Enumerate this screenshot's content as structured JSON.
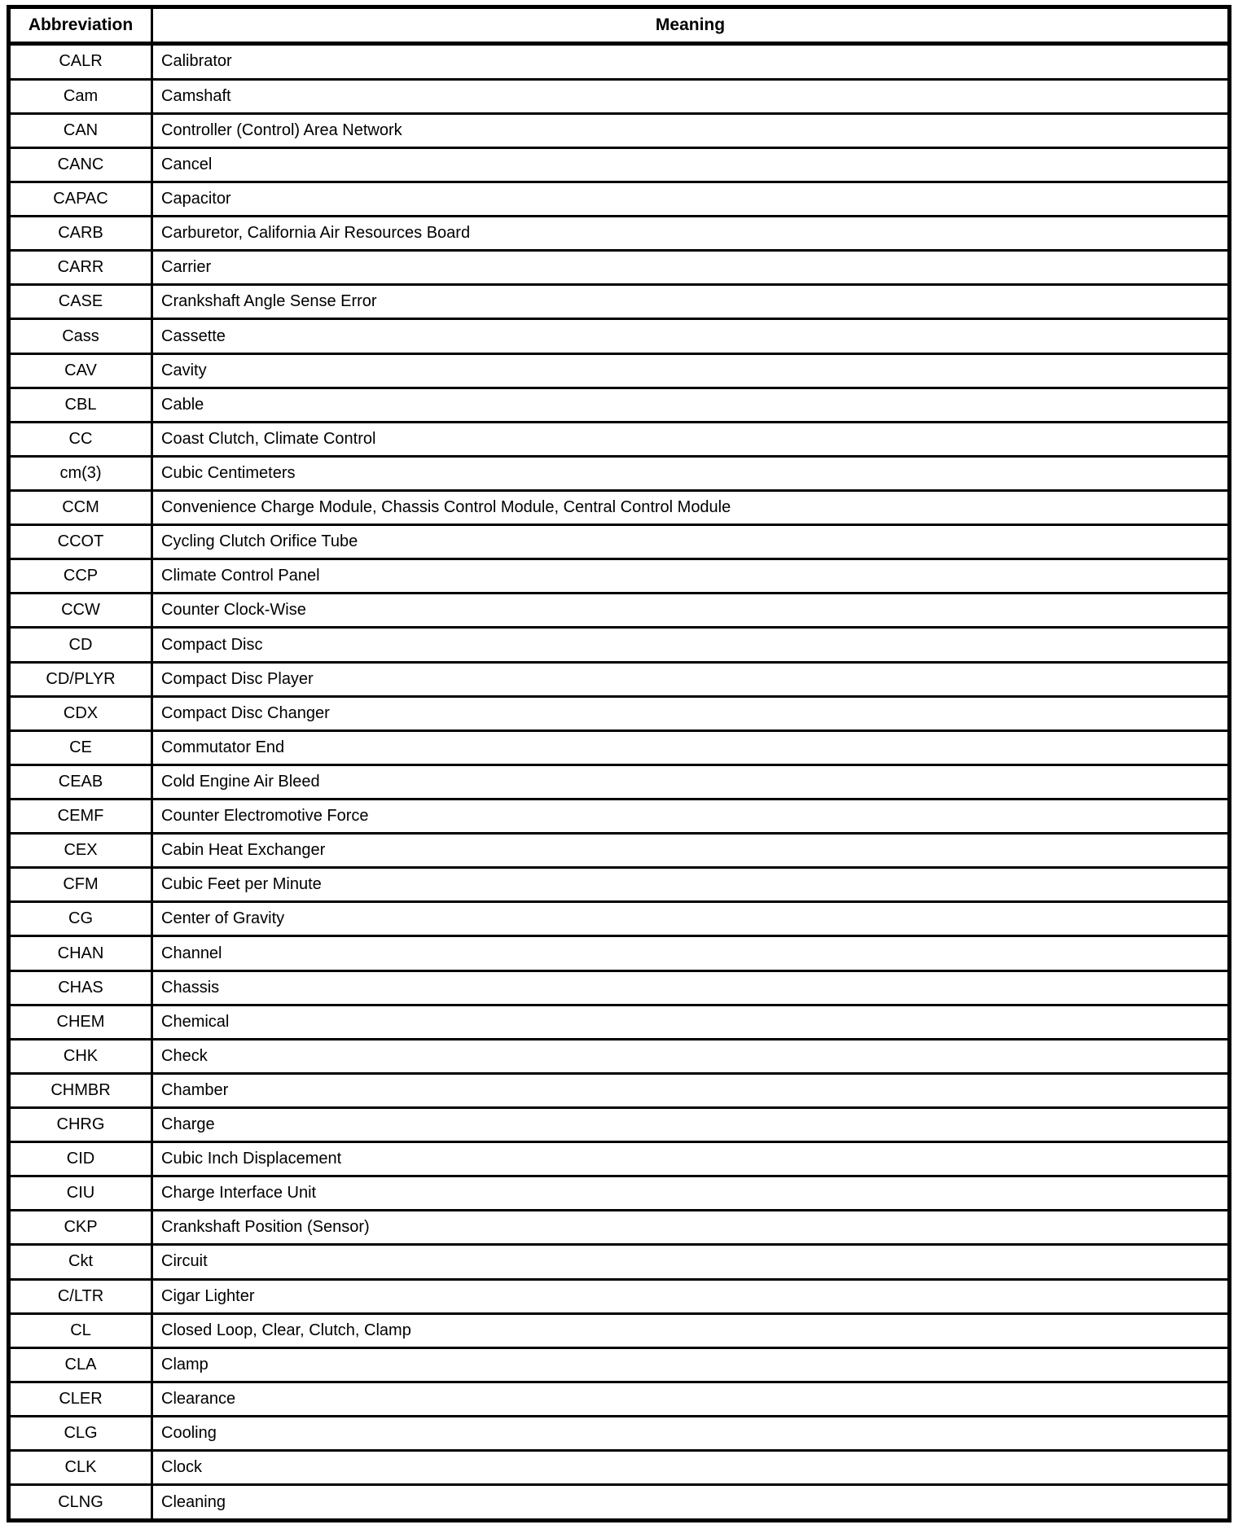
{
  "document": {
    "type": "abbreviation-glossary-table",
    "colors": {
      "background": "#ffffff",
      "border": "#000000",
      "text": "#000000"
    },
    "table": {
      "headers": {
        "abbreviation": "Abbreviation",
        "meaning": "Meaning"
      },
      "rows": [
        {
          "abbr": "CALR",
          "meaning": "Calibrator"
        },
        {
          "abbr": "Cam",
          "meaning": "Camshaft"
        },
        {
          "abbr": "CAN",
          "meaning": "Controller (Control) Area Network"
        },
        {
          "abbr": "CANC",
          "meaning": "Cancel"
        },
        {
          "abbr": "CAPAC",
          "meaning": "Capacitor"
        },
        {
          "abbr": "CARB",
          "meaning": "Carburetor, California Air Resources Board"
        },
        {
          "abbr": "CARR",
          "meaning": "Carrier"
        },
        {
          "abbr": "CASE",
          "meaning": "Crankshaft Angle Sense Error"
        },
        {
          "abbr": "Cass",
          "meaning": "Cassette"
        },
        {
          "abbr": "CAV",
          "meaning": "Cavity"
        },
        {
          "abbr": "CBL",
          "meaning": "Cable"
        },
        {
          "abbr": "CC",
          "meaning": "Coast Clutch, Climate Control"
        },
        {
          "abbr": "cm(3)",
          "meaning": "Cubic Centimeters"
        },
        {
          "abbr": "CCM",
          "meaning": "Convenience Charge Module, Chassis Control Module, Central Control Module"
        },
        {
          "abbr": "CCOT",
          "meaning": "Cycling Clutch Orifice Tube"
        },
        {
          "abbr": "CCP",
          "meaning": "Climate Control Panel"
        },
        {
          "abbr": "CCW",
          "meaning": "Counter Clock-Wise"
        },
        {
          "abbr": "CD",
          "meaning": "Compact Disc"
        },
        {
          "abbr": "CD/PLYR",
          "meaning": "Compact Disc Player"
        },
        {
          "abbr": "CDX",
          "meaning": "Compact Disc Changer"
        },
        {
          "abbr": "CE",
          "meaning": "Commutator End"
        },
        {
          "abbr": "CEAB",
          "meaning": "Cold Engine Air Bleed"
        },
        {
          "abbr": "CEMF",
          "meaning": "Counter Electromotive Force"
        },
        {
          "abbr": "CEX",
          "meaning": "Cabin Heat Exchanger"
        },
        {
          "abbr": "CFM",
          "meaning": "Cubic Feet per Minute"
        },
        {
          "abbr": "CG",
          "meaning": "Center of Gravity"
        },
        {
          "abbr": "CHAN",
          "meaning": "Channel"
        },
        {
          "abbr": "CHAS",
          "meaning": "Chassis"
        },
        {
          "abbr": "CHEM",
          "meaning": "Chemical"
        },
        {
          "abbr": "CHK",
          "meaning": "Check"
        },
        {
          "abbr": "CHMBR",
          "meaning": "Chamber"
        },
        {
          "abbr": "CHRG",
          "meaning": "Charge"
        },
        {
          "abbr": "CID",
          "meaning": "Cubic Inch Displacement"
        },
        {
          "abbr": "CIU",
          "meaning": "Charge Interface Unit"
        },
        {
          "abbr": "CKP",
          "meaning": "Crankshaft Position (Sensor)"
        },
        {
          "abbr": "Ckt",
          "meaning": "Circuit"
        },
        {
          "abbr": "C/LTR",
          "meaning": "Cigar Lighter"
        },
        {
          "abbr": "CL",
          "meaning": "Closed Loop, Clear, Clutch, Clamp"
        },
        {
          "abbr": "CLA",
          "meaning": "Clamp"
        },
        {
          "abbr": "CLER",
          "meaning": "Clearance"
        },
        {
          "abbr": "CLG",
          "meaning": "Cooling"
        },
        {
          "abbr": "CLK",
          "meaning": "Clock"
        },
        {
          "abbr": "CLNG",
          "meaning": "Cleaning"
        }
      ]
    }
  }
}
